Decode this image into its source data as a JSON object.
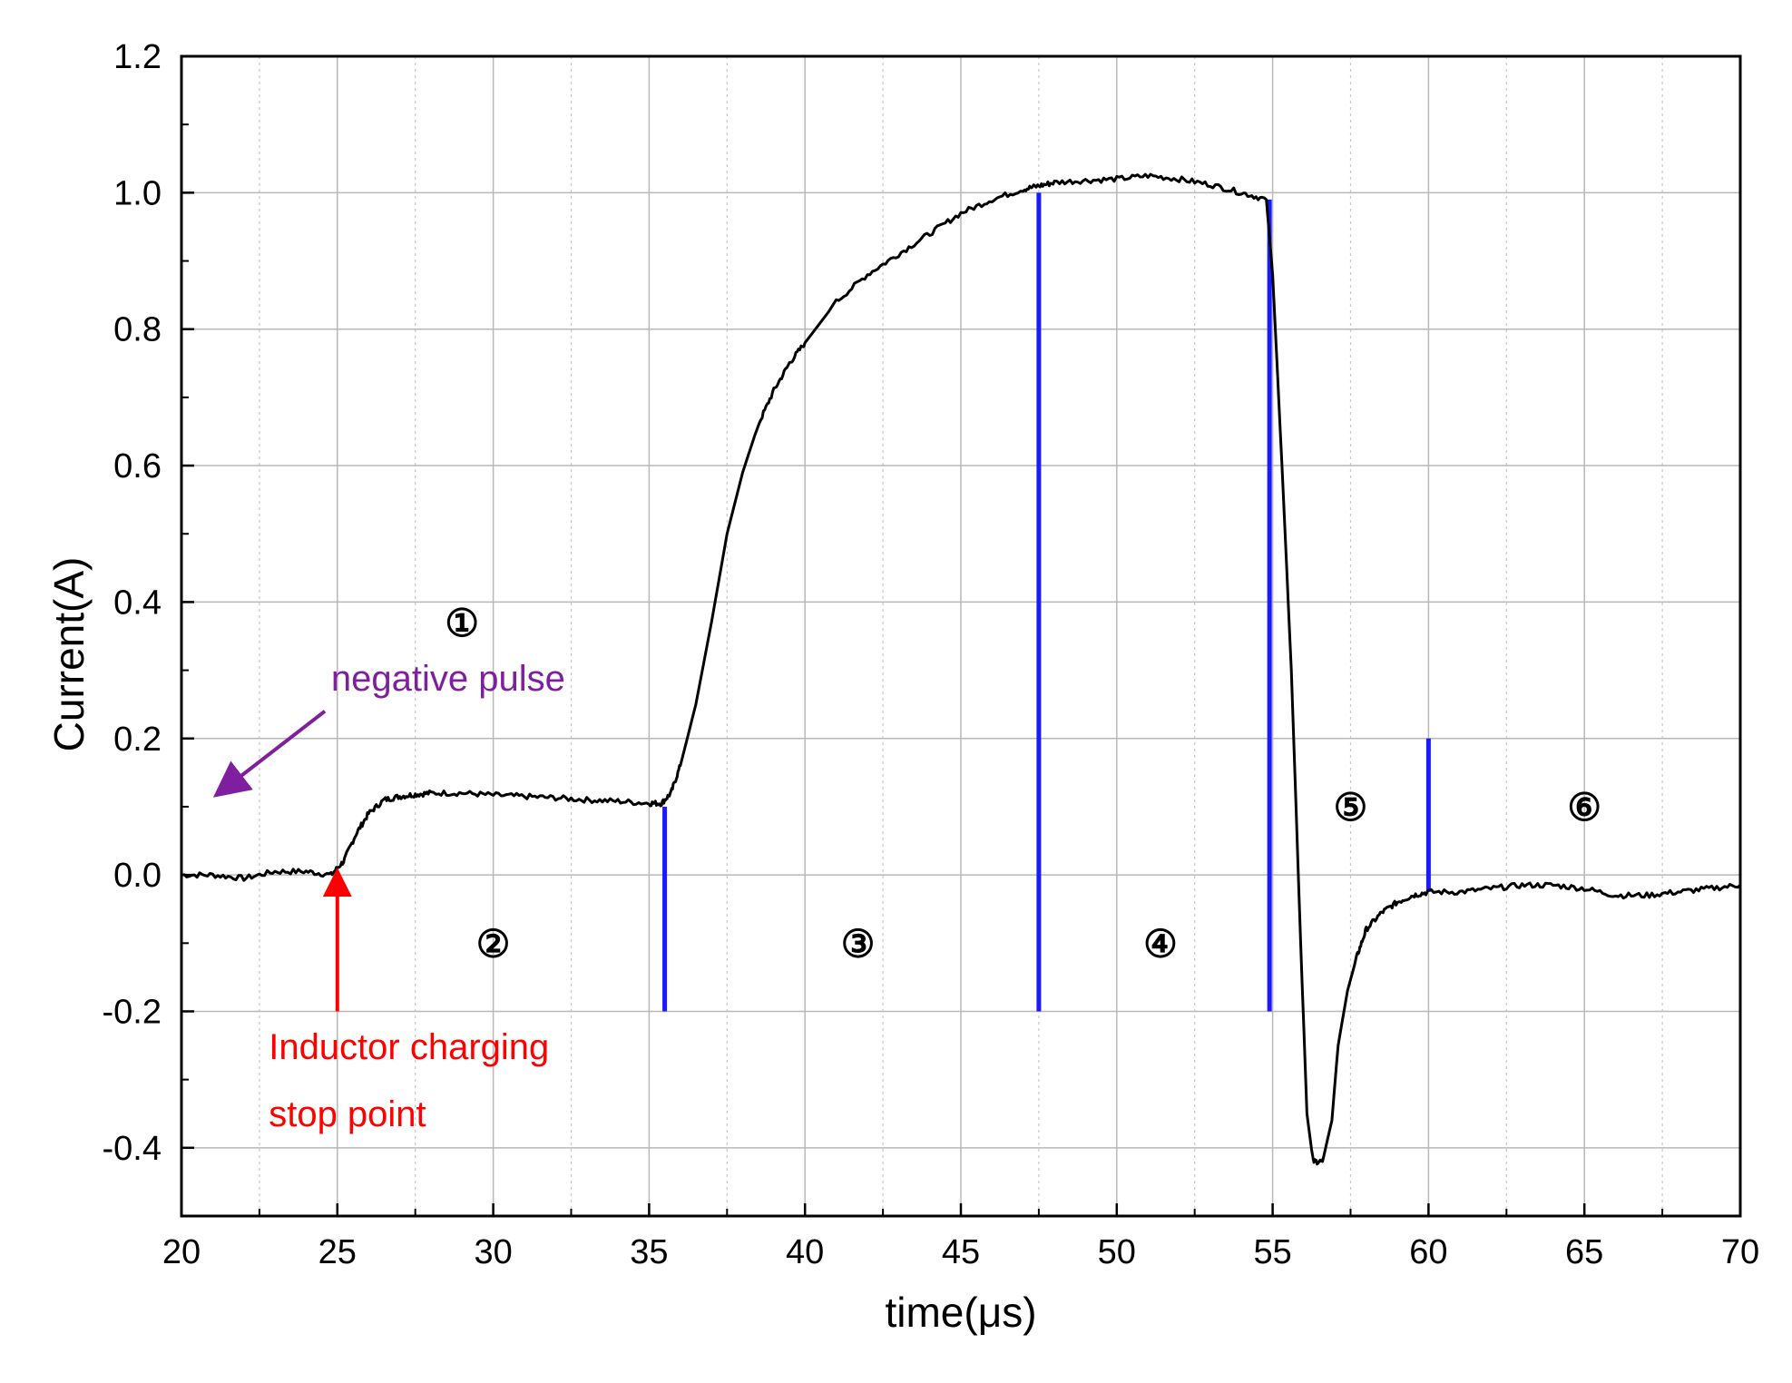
{
  "chart_data": {
    "type": "line",
    "title": "",
    "xlabel": "time(μs)",
    "ylabel": "Current(A)",
    "xlim": [
      20,
      70
    ],
    "ylim": [
      -0.5,
      1.2
    ],
    "x_ticks": [
      20,
      25,
      30,
      35,
      40,
      45,
      50,
      55,
      60,
      65,
      70
    ],
    "x_tick_labels": [
      "20",
      "25",
      "30",
      "35",
      "40",
      "45",
      "50",
      "55",
      "60",
      "65",
      "70"
    ],
    "y_ticks": [
      -0.4,
      -0.2,
      0.0,
      0.2,
      0.4,
      0.6,
      0.8,
      1.0,
      1.2
    ],
    "y_tick_labels": [
      "-0.4",
      "-0.2",
      "0.0",
      "0.2",
      "0.4",
      "0.6",
      "0.8",
      "1.0",
      "1.2"
    ],
    "grid": true,
    "series": [
      {
        "color": "#000000",
        "x": [
          20,
          21,
          22,
          23,
          24,
          24.8,
          25.2,
          25.6,
          26,
          26.5,
          27,
          27.5,
          28,
          29,
          30,
          31,
          32,
          33,
          34,
          35,
          35.4,
          35.7,
          36,
          36.5,
          37,
          37.5,
          38,
          38.5,
          39,
          39.5,
          40,
          41,
          42,
          43,
          44,
          45,
          46,
          47,
          47.5,
          48,
          49,
          50,
          51,
          52,
          53,
          54,
          54.8,
          55,
          55.3,
          55.6,
          55.9,
          56.1,
          56.3,
          56.6,
          56.9,
          57.1,
          57.4,
          57.7,
          58,
          58.5,
          59,
          59.5,
          60,
          61,
          62,
          63,
          64,
          65,
          66,
          67,
          68,
          69,
          70
        ],
        "y": [
          0.0,
          0.0,
          -0.005,
          0.005,
          0.005,
          0.0,
          0.02,
          0.06,
          0.09,
          0.11,
          0.115,
          0.118,
          0.12,
          0.12,
          0.117,
          0.115,
          0.113,
          0.11,
          0.108,
          0.105,
          0.105,
          0.12,
          0.16,
          0.25,
          0.37,
          0.5,
          0.59,
          0.66,
          0.71,
          0.75,
          0.78,
          0.84,
          0.88,
          0.91,
          0.94,
          0.97,
          0.99,
          1.005,
          1.01,
          1.015,
          1.018,
          1.02,
          1.025,
          1.02,
          1.012,
          1.0,
          0.99,
          0.88,
          0.6,
          0.3,
          -0.1,
          -0.35,
          -0.42,
          -0.42,
          -0.36,
          -0.25,
          -0.17,
          -0.12,
          -0.08,
          -0.055,
          -0.04,
          -0.03,
          -0.025,
          -0.025,
          -0.02,
          -0.015,
          -0.015,
          -0.02,
          -0.03,
          -0.03,
          -0.025,
          -0.02,
          -0.015
        ]
      }
    ],
    "boundaries": [
      {
        "x": 35.5,
        "y0": -0.2,
        "y1": 0.1,
        "color": "#1a1aff"
      },
      {
        "x": 47.5,
        "y0": -0.2,
        "y1": 1.0,
        "color": "#1a1aff"
      },
      {
        "x": 54.9,
        "y0": -0.2,
        "y1": 0.99,
        "color": "#1a1aff"
      },
      {
        "x": 60.0,
        "y0": -0.025,
        "y1": 0.2,
        "color": "#1a1aff"
      }
    ],
    "regions": [
      {
        "label": "①",
        "x": 29.0,
        "y": 0.37
      },
      {
        "label": "②",
        "x": 30.0,
        "y": -0.1
      },
      {
        "label": "③",
        "x": 41.7,
        "y": -0.1
      },
      {
        "label": "④",
        "x": 51.4,
        "y": -0.1
      },
      {
        "label": "⑤",
        "x": 57.5,
        "y": 0.1
      },
      {
        "label": "⑥",
        "x": 65.0,
        "y": 0.1
      }
    ],
    "annotations": [
      {
        "text": "negative pulse",
        "color": "#7f1f9f",
        "text_x": 24.8,
        "text_y": 0.27,
        "arrow_from": [
          24.6,
          0.24
        ],
        "arrow_to": [
          21.2,
          0.12
        ]
      },
      {
        "text_lines": [
          "Inductor  charging",
          "stop point"
        ],
        "color": "#ff0000",
        "text_x": 22.8,
        "text_y": -0.27,
        "arrow_from": [
          25.0,
          -0.2
        ],
        "arrow_to": [
          25.0,
          0.0
        ]
      }
    ]
  }
}
